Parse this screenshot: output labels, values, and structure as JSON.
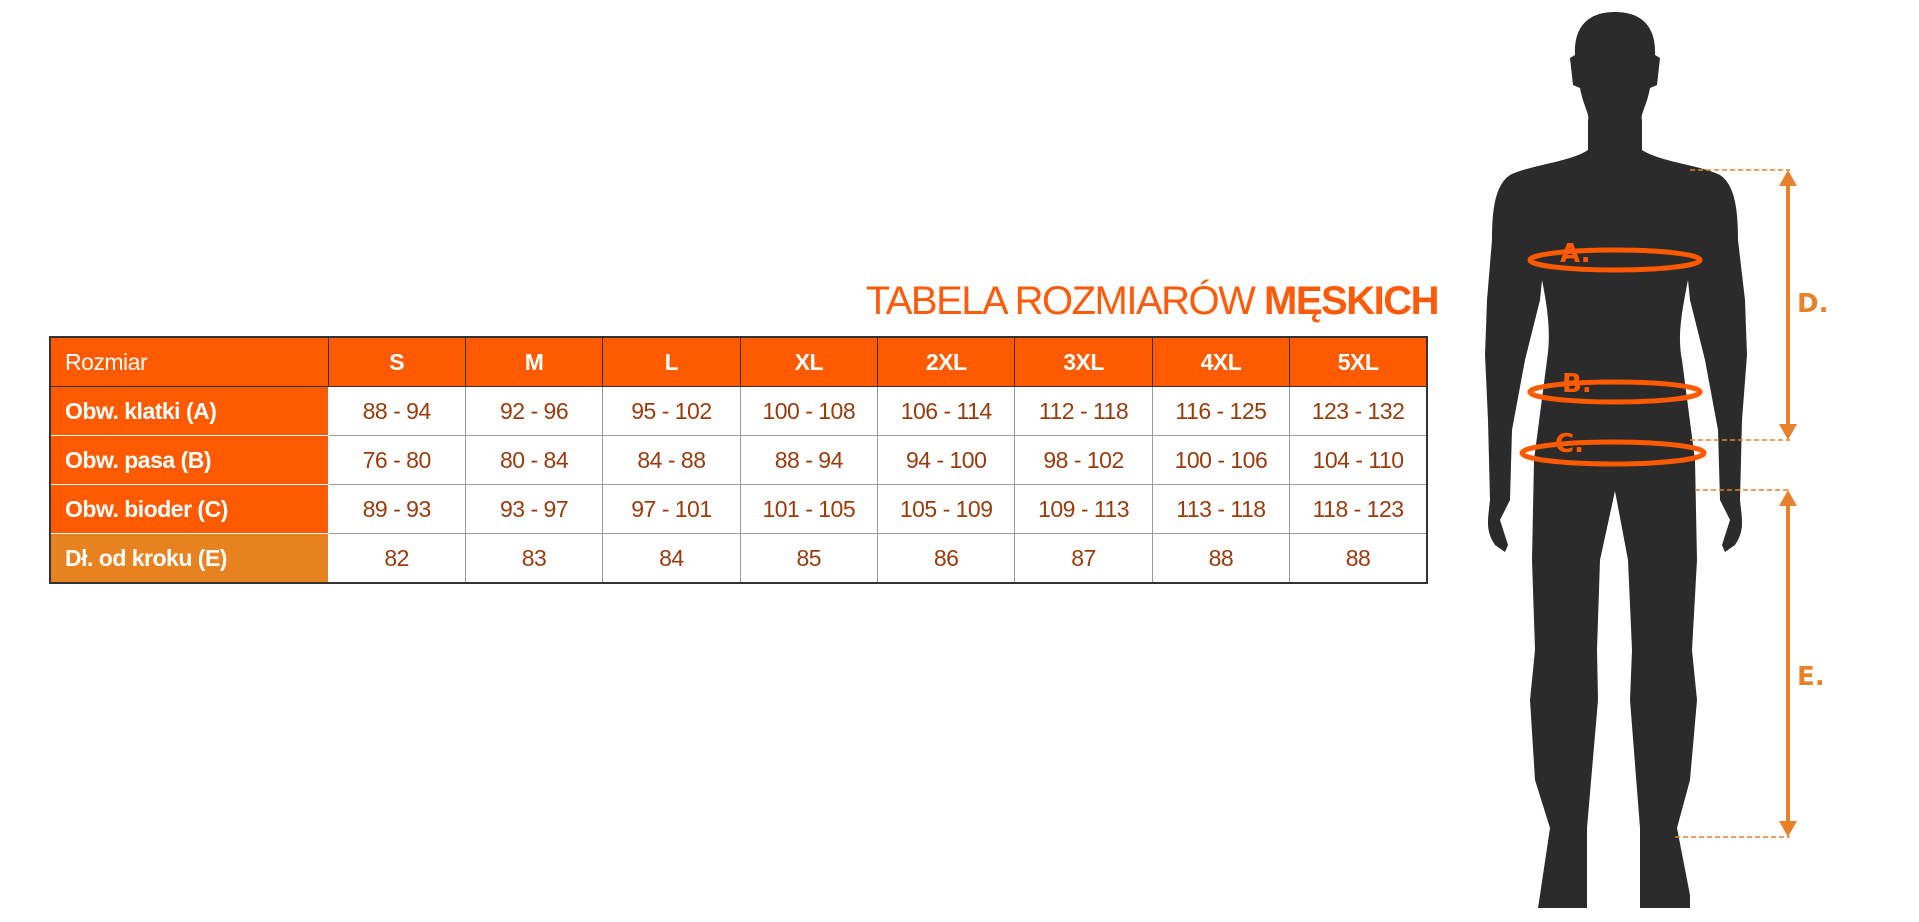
{
  "title": {
    "normal": "TABELA ROZMIARÓW",
    "bold": "MĘSKICH"
  },
  "table": {
    "header_label": "Rozmiar",
    "sizes": [
      "S",
      "M",
      "L",
      "XL",
      "2XL",
      "3XL",
      "4XL",
      "5XL"
    ],
    "rows": [
      {
        "label": "Obw. klatki (A)",
        "values": [
          "88 - 94",
          "92 - 96",
          "95 - 102",
          "100 - 108",
          "106 - 114",
          "112 - 118",
          "116 - 125",
          "123 - 132"
        ]
      },
      {
        "label": "Obw. pasa (B)",
        "values": [
          "76 - 80",
          "80 - 84",
          "84 - 88",
          "88 - 94",
          "94 - 100",
          "98 - 102",
          "100 - 106",
          "104 - 110"
        ]
      },
      {
        "label": "Obw. bioder (C)",
        "values": [
          "89 - 93",
          "93 - 97",
          "97 - 101",
          "101 - 105",
          "105 - 109",
          "109 - 113",
          "113 - 118",
          "118 - 123"
        ]
      },
      {
        "label": "Dł. od kroku (E)",
        "values": [
          "82",
          "83",
          "84",
          "85",
          "86",
          "87",
          "88",
          "88"
        ]
      }
    ]
  },
  "figure": {
    "labels": {
      "a": "A.",
      "b": "B.",
      "c": "C.",
      "d": "D.",
      "e": "E."
    }
  },
  "colors": {
    "header": "#ff5a00",
    "inseam_label": "#e8821f",
    "values": "#9b3b0c",
    "silhouette": "#2b2b2b",
    "arrows": "#e8822a"
  }
}
